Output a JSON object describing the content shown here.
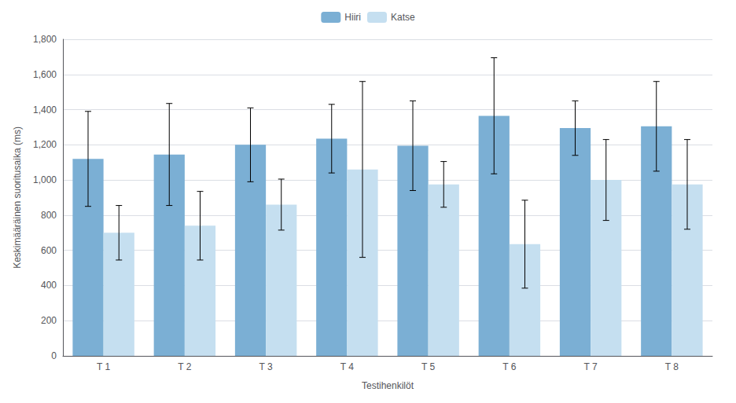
{
  "chart_data": {
    "type": "bar",
    "categories": [
      "T 1",
      "T 2",
      "T 3",
      "T 4",
      "T 5",
      "T 6",
      "T 7",
      "T 8"
    ],
    "series": [
      {
        "name": "Hiiri",
        "color": "#7BAFD4",
        "values": [
          1120,
          1145,
          1200,
          1235,
          1195,
          1365,
          1295,
          1305
        ],
        "errors": [
          270,
          290,
          210,
          195,
          255,
          330,
          155,
          255
        ]
      },
      {
        "name": "Katse",
        "color": "#C5DFF0",
        "values": [
          700,
          740,
          860,
          1060,
          975,
          635,
          1000,
          975
        ],
        "errors": [
          155,
          195,
          145,
          500,
          130,
          250,
          230,
          255
        ]
      }
    ],
    "xlabel": "Testihenkilöt",
    "ylabel": "Keskimääräinen suoritusaika (ms)",
    "ylim": [
      0,
      1800
    ],
    "yticks": [
      0,
      200,
      400,
      600,
      800,
      1000,
      1200,
      1400,
      1600,
      1800
    ],
    "grid": true,
    "legend": "top"
  }
}
